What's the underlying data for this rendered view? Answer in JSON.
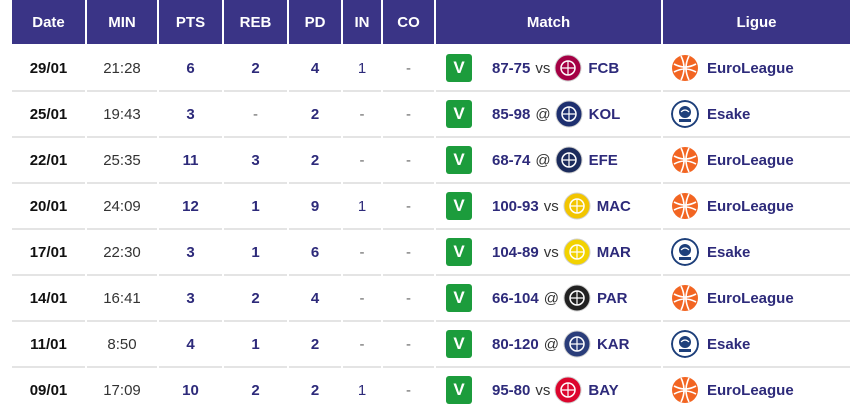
{
  "headers": {
    "date": "Date",
    "min": "MIN",
    "pts": "PTS",
    "reb": "REB",
    "pd": "PD",
    "in": "IN",
    "co": "CO",
    "match": "Match",
    "ligue": "Ligue"
  },
  "result_label": "V",
  "rows": [
    {
      "date": "29/01",
      "min": "21:28",
      "pts": "6",
      "reb": "2",
      "pd": "4",
      "in": "1",
      "co": "-",
      "score": "87-75",
      "sep": "vs",
      "team": "FCB",
      "team_icon": "fcb-crest-icon",
      "team_color": "#a50044",
      "league": "EuroLeague",
      "league_icon": "euroleague-icon"
    },
    {
      "date": "25/01",
      "min": "19:43",
      "pts": "3",
      "reb": "-",
      "pd": "2",
      "in": "-",
      "co": "-",
      "score": "85-98",
      "sep": "@",
      "team": "KOL",
      "team_icon": "kol-crest-icon",
      "team_color": "#1d2f6f",
      "league": "Esake",
      "league_icon": "esake-icon"
    },
    {
      "date": "22/01",
      "min": "25:35",
      "pts": "11",
      "reb": "3",
      "pd": "2",
      "in": "-",
      "co": "-",
      "score": "68-74",
      "sep": "@",
      "team": "EFE",
      "team_icon": "efe-crest-icon",
      "team_color": "#1b2b5c",
      "league": "EuroLeague",
      "league_icon": "euroleague-icon"
    },
    {
      "date": "20/01",
      "min": "24:09",
      "pts": "12",
      "reb": "1",
      "pd": "9",
      "in": "1",
      "co": "-",
      "score": "100-93",
      "sep": "vs",
      "team": "MAC",
      "team_icon": "mac-crest-icon",
      "team_color": "#f2c500",
      "league": "EuroLeague",
      "league_icon": "euroleague-icon"
    },
    {
      "date": "17/01",
      "min": "22:30",
      "pts": "3",
      "reb": "1",
      "pd": "6",
      "in": "-",
      "co": "-",
      "score": "104-89",
      "sep": "vs",
      "team": "MAR",
      "team_icon": "mar-crest-icon",
      "team_color": "#f2d200",
      "league": "Esake",
      "league_icon": "esake-icon"
    },
    {
      "date": "14/01",
      "min": "16:41",
      "pts": "3",
      "reb": "2",
      "pd": "4",
      "in": "-",
      "co": "-",
      "score": "66-104",
      "sep": "@",
      "team": "PAR",
      "team_icon": "par-crest-icon",
      "team_color": "#222222",
      "league": "EuroLeague",
      "league_icon": "euroleague-icon"
    },
    {
      "date": "11/01",
      "min": "8:50",
      "pts": "4",
      "reb": "1",
      "pd": "2",
      "in": "-",
      "co": "-",
      "score": "80-120",
      "sep": "@",
      "team": "KAR",
      "team_icon": "kar-crest-icon",
      "team_color": "#2a3d7a",
      "league": "Esake",
      "league_icon": "esake-icon"
    },
    {
      "date": "09/01",
      "min": "17:09",
      "pts": "10",
      "reb": "2",
      "pd": "2",
      "in": "1",
      "co": "-",
      "score": "95-80",
      "sep": "vs",
      "team": "BAY",
      "team_icon": "bay-crest-icon",
      "team_color": "#dc052d",
      "league": "EuroLeague",
      "league_icon": "euroleague-icon"
    }
  ],
  "colors": {
    "header_bg": "#3a3486",
    "win_badge": "#1c9c3c",
    "text_accent": "#2d2a7a",
    "euroleague_orange": "#f26522"
  }
}
